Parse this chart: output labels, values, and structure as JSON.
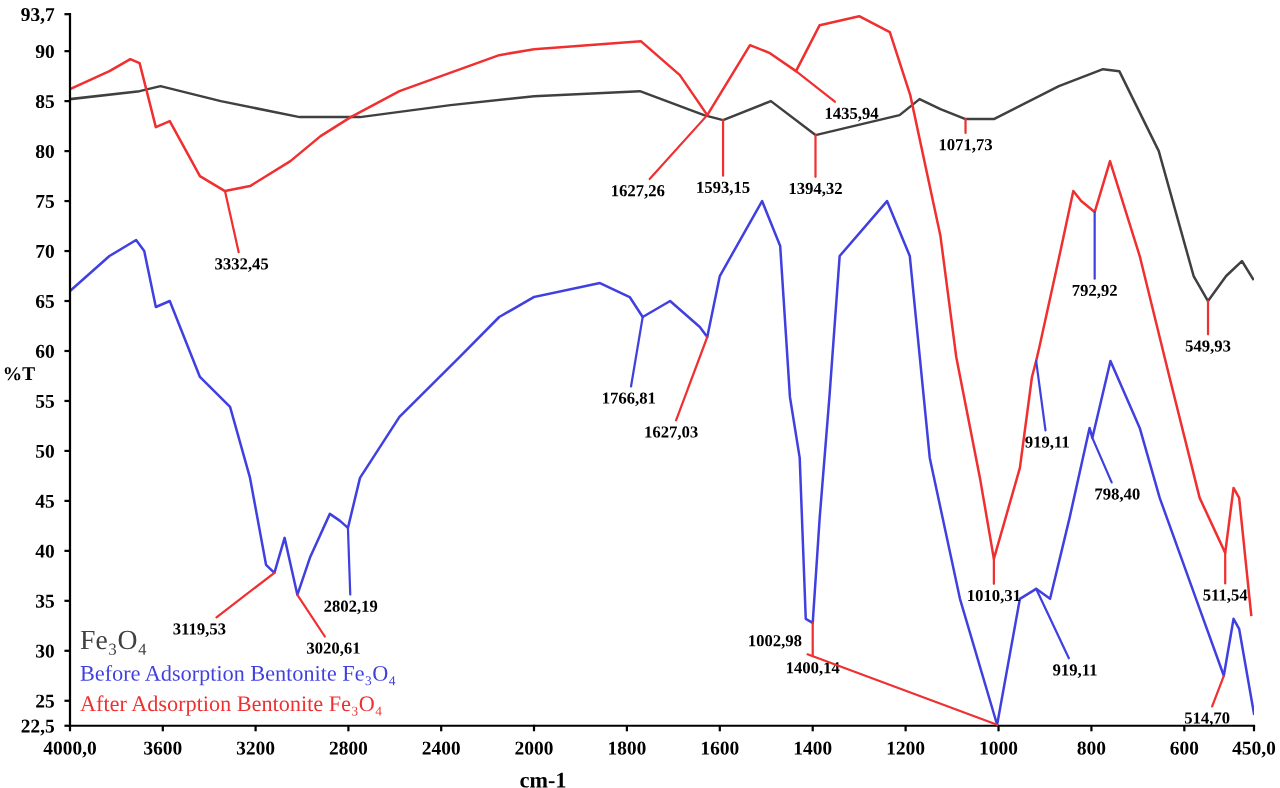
{
  "chart_data": [
    {
      "type": "line",
      "ylabel": "%T",
      "xlim": [
        4000,
        2000
      ],
      "ylim": [
        22.5,
        93.7
      ],
      "xticks": [
        {
          "value": 4000,
          "label": "4000,0"
        },
        3600,
        3200,
        2800,
        2400
      ],
      "yticks": [
        {
          "value": 22.5,
          "label": "22,5"
        },
        25,
        30,
        35,
        40,
        45,
        50,
        55,
        60,
        65,
        70,
        75,
        80,
        85,
        90,
        {
          "value": 93.7,
          "label": "93,7"
        }
      ],
      "grid": false,
      "legend": "bottom left",
      "marker": "none",
      "line_style": "solid",
      "series": [
        {
          "name": "Fe₃O₄",
          "color": "#404040",
          "x": [
            4000,
            3700,
            3610,
            3350,
            3010,
            2750,
            2360,
            2000
          ],
          "values": [
            85.2,
            86,
            86.5,
            85,
            83.4,
            83.4,
            84.6,
            85.5
          ]
        },
        {
          "name": "Before Adsorption Bentonite Fe₃O₄",
          "color": "#4040e0",
          "x": [
            4000,
            3830,
            3715,
            3680,
            3630,
            3570,
            3440,
            3310,
            3224,
            3155,
            3119,
            3075,
            3020,
            2966,
            2880,
            2836,
            2802,
            2750,
            2580,
            2320,
            2150,
            2000
          ],
          "values": [
            66,
            69.5,
            71.1,
            70,
            64.4,
            65,
            57.4,
            54.4,
            47.3,
            38.6,
            37.8,
            41.3,
            35.6,
            39.3,
            43.7,
            43,
            42.3,
            47.3,
            53.4,
            59.4,
            63.4,
            65.4
          ]
        },
        {
          "name": "After Adsorption Bentonite Fe₃O₄",
          "color": "#f03030",
          "x": [
            4000,
            3830,
            3740,
            3700,
            3630,
            3570,
            3440,
            3332,
            3224,
            3050,
            2920,
            2790,
            2580,
            2150,
            2000
          ],
          "values": [
            86.2,
            88,
            89.2,
            88.8,
            82.4,
            83,
            77.5,
            76,
            76.5,
            79,
            81.5,
            83.4,
            86,
            89.6,
            90.2
          ]
        }
      ],
      "annotations": [
        {
          "text": "3332,45",
          "x": 3332,
          "y": 76
        },
        {
          "text": "3119,53",
          "x": 3119,
          "y": 37.8
        },
        {
          "text": "3020,61",
          "x": 3020,
          "y": 35.6
        },
        {
          "text": "2802,19",
          "x": 2802,
          "y": 42.3
        }
      ]
    },
    {
      "type": "line",
      "xlabel": "cm-1",
      "xlim": [
        2000,
        450
      ],
      "ylim": [
        22.5,
        93.7
      ],
      "tick_labels": "x",
      "xticks": [
        2000,
        1800,
        1600,
        1400,
        1200,
        1000,
        800,
        600,
        {
          "value": 450,
          "label": "450,0"
        }
      ],
      "grid": false,
      "marker": "none",
      "line_style": "solid",
      "series": [
        {
          "color": "#404040",
          "x": [
            2000,
            1772,
            1634,
            1593,
            1490,
            1394,
            1213,
            1170,
            1125,
            1071,
            1010,
            870,
            775,
            740,
            655,
            580,
            549,
            510,
            476,
            452
          ],
          "values": [
            85.5,
            86,
            83.6,
            83.1,
            85,
            81.6,
            83.6,
            85.2,
            84.2,
            83.2,
            83.2,
            86.5,
            88.2,
            88,
            80,
            67.5,
            65,
            67.5,
            69,
            67.2
          ]
        },
        {
          "color": "#4040e0",
          "x": [
            2000,
            1858,
            1794,
            1766,
            1707,
            1643,
            1627,
            1600,
            1509,
            1470,
            1449,
            1428,
            1415,
            1400,
            1385,
            1364,
            1342,
            1240,
            1191,
            1148,
            1083,
            1003,
            954,
            919,
            889,
            847,
            804,
            798,
            759,
            696,
            653,
            567,
            515,
            494,
            482,
            450
          ],
          "values": [
            65.4,
            66.8,
            65.4,
            63.4,
            65,
            62.4,
            61.4,
            67.5,
            75,
            70.5,
            55.4,
            49.3,
            33.2,
            32.8,
            43.3,
            55.4,
            69.5,
            75,
            69.5,
            49.3,
            35.2,
            22.6,
            35.2,
            36.2,
            35.2,
            43.3,
            52.3,
            51.3,
            59,
            52.3,
            45.3,
            34.2,
            27.5,
            33.2,
            32.2,
            23.7
          ]
        },
        {
          "color": "#f03030",
          "x": [
            2000,
            1770,
            1686,
            1627,
            1535,
            1492,
            1436,
            1385,
            1300,
            1234,
            1190,
            1125,
            1091,
            1040,
            1010,
            954,
            928,
            919,
            912,
            869,
            839,
            822,
            793,
            760,
            696,
            632,
            567,
            512,
            494,
            482,
            456
          ],
          "values": [
            90.2,
            91,
            87.6,
            83.6,
            90.6,
            89.8,
            88,
            92.6,
            93.5,
            91.9,
            85.6,
            71.5,
            59.4,
            47.3,
            39.2,
            48.3,
            57.4,
            59,
            60.4,
            69.5,
            76,
            75,
            73.9,
            79,
            69.5,
            57.4,
            45.3,
            39.8,
            46.3,
            45.3,
            33.6
          ]
        }
      ],
      "annotations": [
        {
          "text": "1627,26",
          "x": 1627,
          "y": 83.6
        },
        {
          "text": "1593,15",
          "x": 1593,
          "y": 83.1
        },
        {
          "text": "1394,32",
          "x": 1394,
          "y": 81.6
        },
        {
          "text": "1435,94",
          "x": 1436,
          "y": 88
        },
        {
          "text": "1071,73",
          "x": 1071,
          "y": 83.2
        },
        {
          "text": "792,92",
          "x": 793,
          "y": 73.9
        },
        {
          "text": "549,93",
          "x": 549,
          "y": 65
        },
        {
          "text": "1766,81",
          "x": 1766,
          "y": 63.4
        },
        {
          "text": "1627,03",
          "x": 1627,
          "y": 61.4
        },
        {
          "text": "919,11",
          "x": 919,
          "y": 59
        },
        {
          "text": "798,40",
          "x": 798,
          "y": 51.3
        },
        {
          "text": "1010,31",
          "x": 1010,
          "y": 39.2
        },
        {
          "text": "511,54",
          "x": 512,
          "y": 39.8
        },
        {
          "text": "1400,14",
          "x": 1400,
          "y": 32.8
        },
        {
          "text": "1002,98",
          "x": 1003,
          "y": 22.6
        },
        {
          "text": "919,11",
          "x": 919,
          "y": 36.2
        },
        {
          "text": "514,70",
          "x": 515,
          "y": 27.5
        }
      ]
    }
  ]
}
